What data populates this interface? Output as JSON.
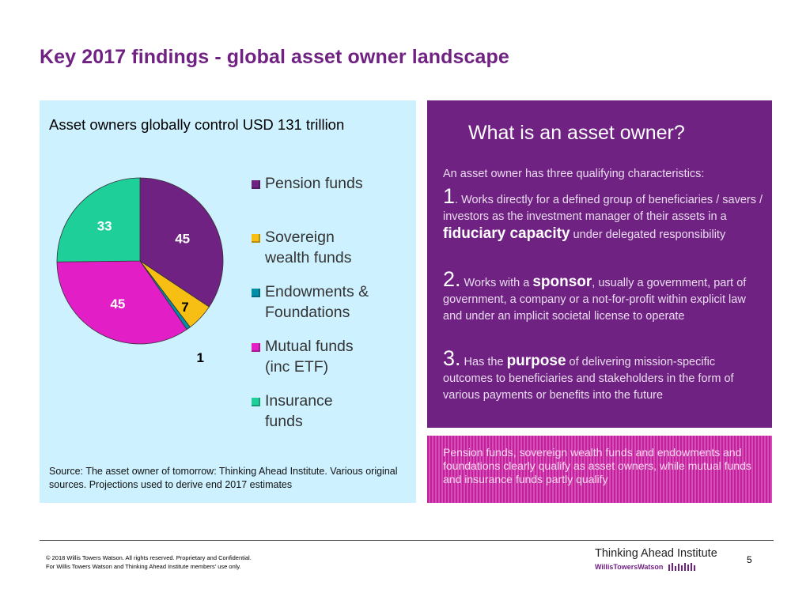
{
  "title": "Key 2017 findings - global asset owner landscape",
  "chart_data": {
    "type": "pie",
    "title": "Asset owners globally control USD 131 trillion",
    "categories": [
      "Pension funds",
      "Sovereign wealth funds",
      "Endowments & Foundations",
      "Mutual funds (inc ETF)",
      "Insurance funds"
    ],
    "values": [
      45,
      7,
      1,
      45,
      33
    ],
    "data_labels": [
      "45",
      "7",
      "1",
      "45",
      "33"
    ],
    "colors": [
      "#702283",
      "#f7be14",
      "#008ea8",
      "#e21fc6",
      "#1fcf9a"
    ],
    "legend_position": "right",
    "start_angle_deg": 0,
    "direction": "clockwise"
  },
  "legend": {
    "items": [
      {
        "lines": [
          "Pension funds"
        ]
      },
      {
        "lines": [
          "Sovereign",
          "wealth funds"
        ]
      },
      {
        "lines": [
          "Endowments &",
          "Foundations"
        ]
      },
      {
        "lines": [
          "Mutual funds",
          "(inc ETF)"
        ]
      },
      {
        "lines": [
          "Insurance",
          "funds"
        ]
      }
    ]
  },
  "source_note": "Source: The asset owner of tomorrow: Thinking Ahead Institute. Various original sources. Projections used to derive end 2017 estimates",
  "info": {
    "heading": "What is an asset owner?",
    "intro": "An asset owner has three qualifying characteristics:",
    "points": [
      {
        "num": "1",
        "before": ". Works directly for a defined group of beneficiaries / savers / investors as the investment manager of their assets in a ",
        "key": "fiduciary capacity",
        "after": " under delegated responsibility"
      },
      {
        "num": "2.",
        "before": " Works with a ",
        "key": "sponsor",
        "after": ", usually a government, part of government, a company or a not-for-profit within explicit law and under an implicit societal license to operate"
      },
      {
        "num": "3.",
        "before": "  Has the ",
        "key": "purpose",
        "after": " of delivering mission-specific outcomes to beneficiaries and stakeholders in the form of various payments or benefits into the future"
      }
    ]
  },
  "qualify_note": "Pension funds, sovereign wealth funds and endowments and foundations clearly qualify as asset owners, while mutual funds and insurance funds partly qualify",
  "footer": {
    "copyright_lines": [
      "© 2018 Willis Towers Watson. All rights reserved. Proprietary and Confidential.",
      "For Willis Towers Watson and Thinking Ahead Institute members' use only."
    ],
    "institute": "Thinking Ahead Institute",
    "brand": "WillisTowersWatson",
    "page_number": "5"
  }
}
